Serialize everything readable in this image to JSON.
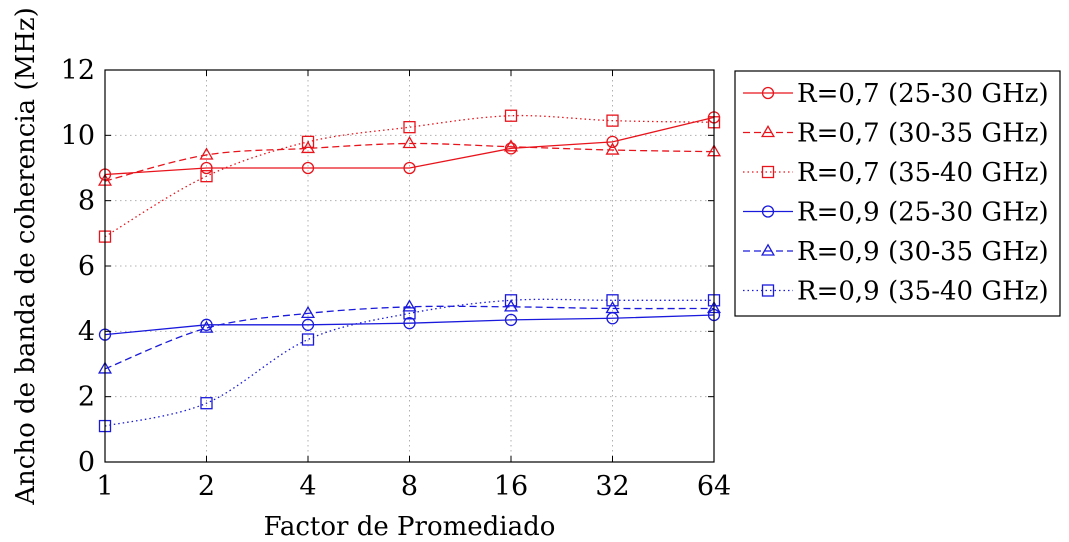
{
  "chart_data": {
    "type": "line",
    "xlabel": "Factor de Promediado",
    "ylabel": "Ancho de banda de coherencia (MHz)",
    "x_scale": "log2",
    "x": [
      1,
      2,
      4,
      8,
      16,
      32,
      64
    ],
    "x_tick_labels": [
      "1",
      "2",
      "4",
      "8",
      "16",
      "32",
      "64"
    ],
    "y_ticks": [
      0,
      2,
      4,
      6,
      8,
      10,
      12
    ],
    "y_tick_labels": [
      "0",
      "2",
      "4",
      "6",
      "8",
      "10",
      "12"
    ],
    "ylim": [
      0,
      12
    ],
    "grid": true,
    "legend_position": "outside-right",
    "series": [
      {
        "name": "R=0,7 (25-30 GHz)",
        "color": "#e8141c",
        "line": "solid",
        "marker": "circle",
        "values": [
          8.8,
          9.0,
          9.0,
          9.0,
          9.6,
          9.8,
          10.55
        ]
      },
      {
        "name": "R=0,7 (30-35 GHz)",
        "color": "#e8141c",
        "line": "dashed",
        "marker": "triangle",
        "values": [
          8.6,
          9.4,
          9.6,
          9.75,
          9.65,
          9.55,
          9.5
        ]
      },
      {
        "name": "R=0,7 (35-40 GHz)",
        "color": "#e8141c",
        "line": "dotted",
        "marker": "square",
        "values": [
          6.9,
          8.75,
          9.8,
          10.25,
          10.6,
          10.45,
          10.4
        ]
      },
      {
        "name": "R=0,9 (25-30 GHz)",
        "color": "#1a1adc",
        "line": "solid",
        "marker": "circle",
        "values": [
          3.9,
          4.2,
          4.2,
          4.25,
          4.35,
          4.4,
          4.5
        ]
      },
      {
        "name": "R=0,9 (30-35 GHz)",
        "color": "#1a1adc",
        "line": "dashed",
        "marker": "triangle",
        "values": [
          2.85,
          4.1,
          4.55,
          4.75,
          4.75,
          4.7,
          4.7
        ]
      },
      {
        "name": "R=0,9 (35-40 GHz)",
        "color": "#1a1adc",
        "line": "dotted",
        "marker": "square",
        "values": [
          1.1,
          1.8,
          3.75,
          4.55,
          4.95,
          4.95,
          4.95
        ]
      }
    ]
  }
}
